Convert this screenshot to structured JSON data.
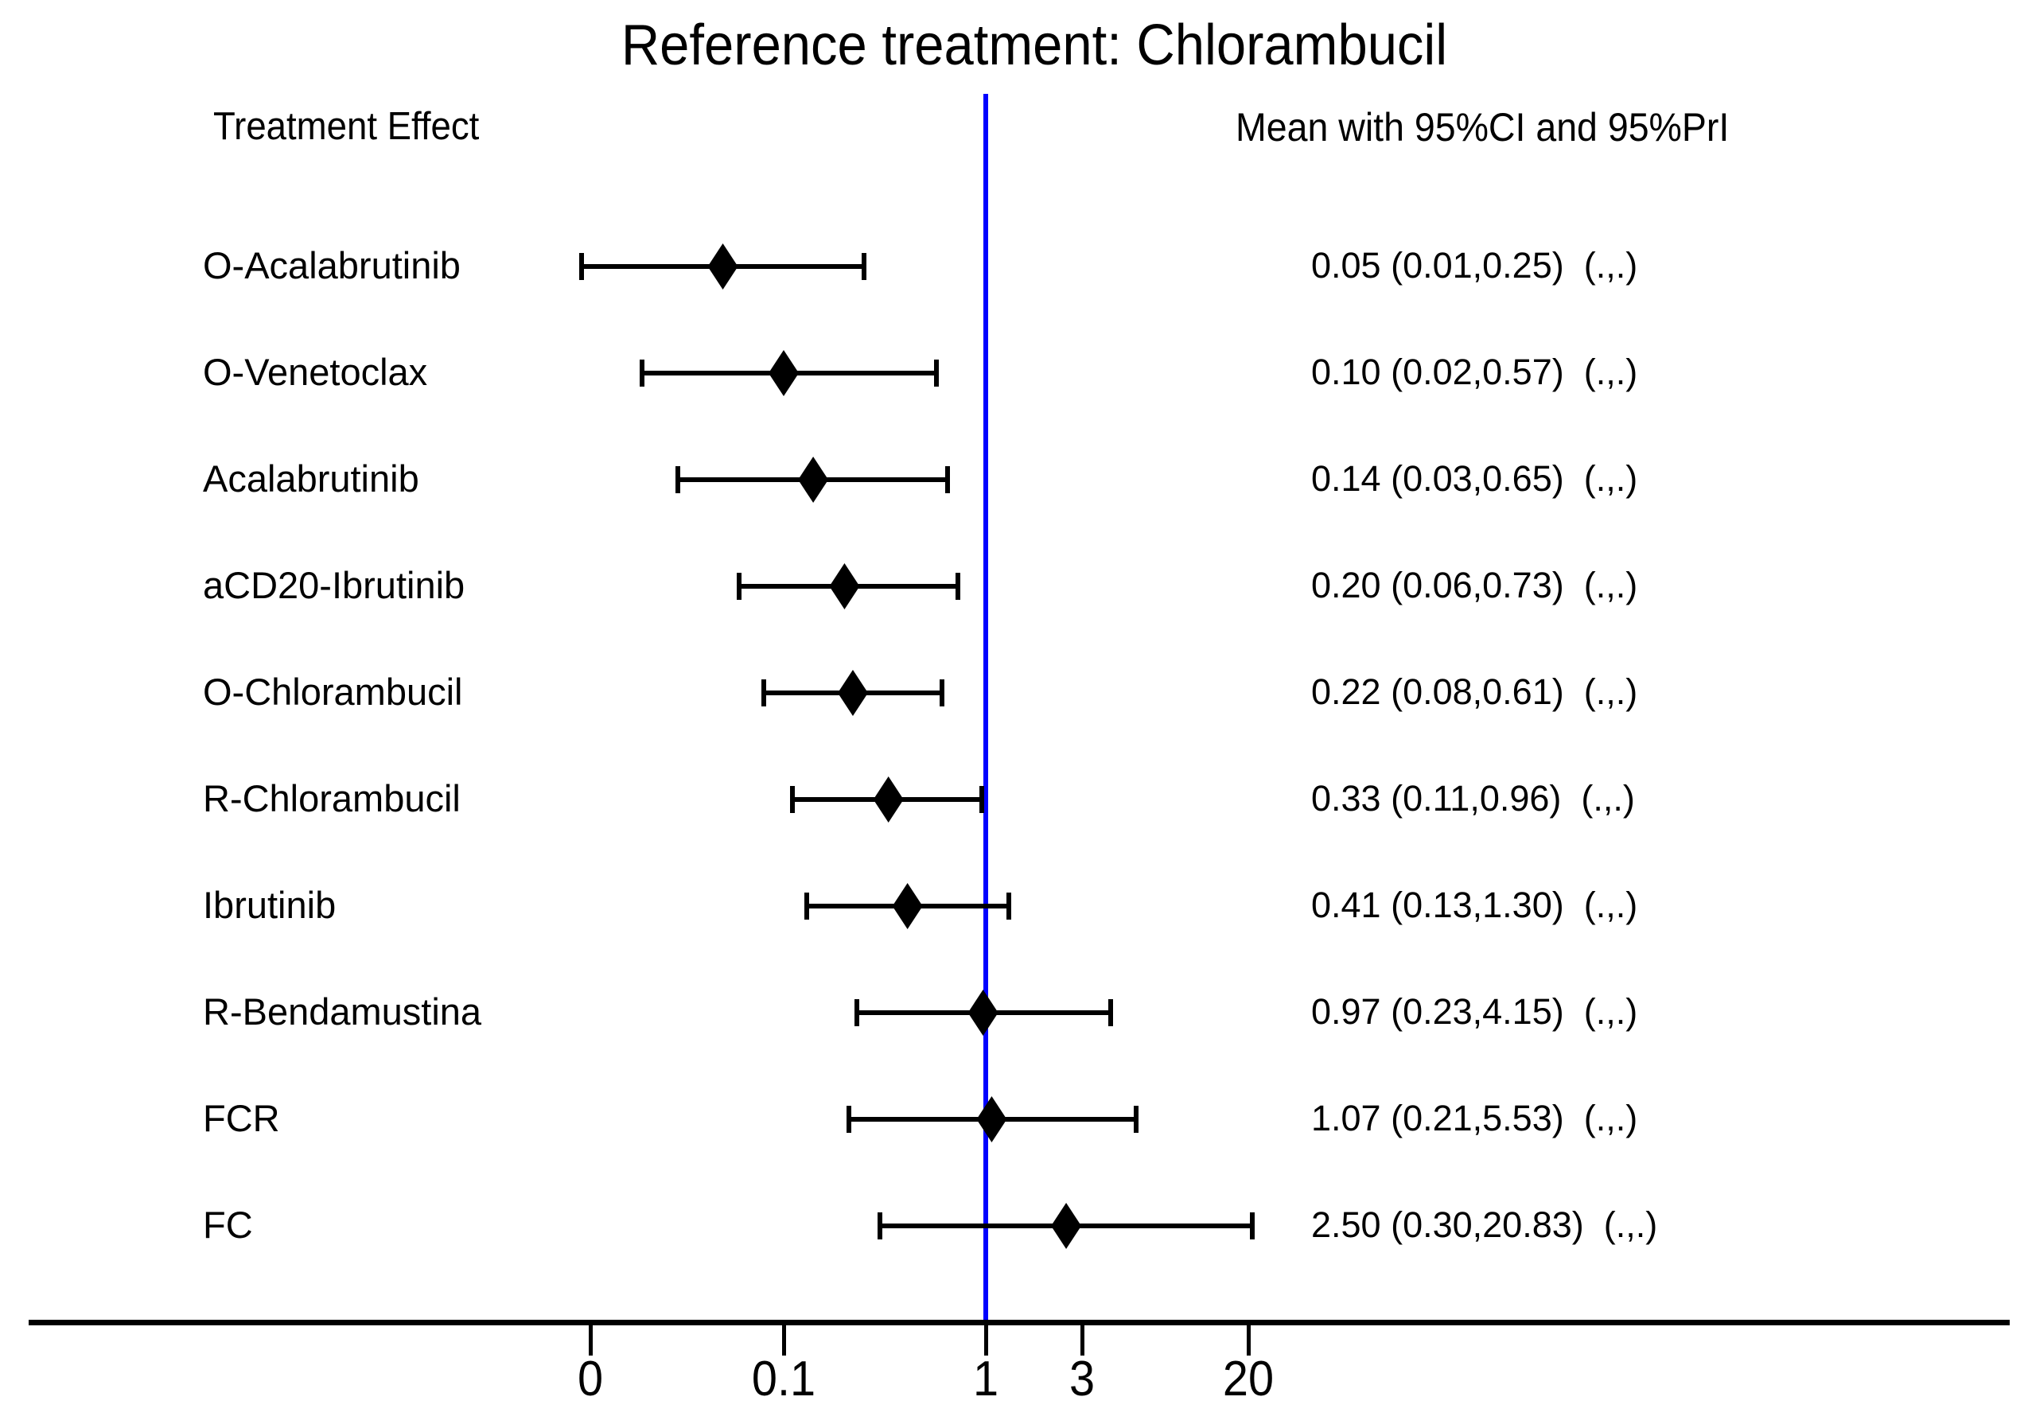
{
  "title": "Reference treatment: Chlorambucil",
  "headers": {
    "left": "Treatment Effect",
    "right": "Mean with 95%CI and 95%PrI"
  },
  "colors": {
    "marker_black": "#000000",
    "reference_line_blue": "#0000FF",
    "background": "#FFFFFF"
  },
  "chart_data": {
    "type": "forest",
    "title": "Reference treatment: Chlorambucil",
    "x_scale": "log",
    "grid": "off",
    "reference_line": {
      "value": 1
    },
    "x_axis": {
      "ticks": [
        {
          "label": "0",
          "value": 0.011
        },
        {
          "label": "0.1",
          "value": 0.1
        },
        {
          "label": "1",
          "value": 1
        },
        {
          "label": "3",
          "value": 3
        },
        {
          "label": "20",
          "value": 20
        }
      ]
    },
    "rows": [
      {
        "treatment": "O-Acalabrutinib",
        "mean": 0.05,
        "ci_low": 0.01,
        "ci_high": 0.25,
        "display": "0.05 (0.01,0.25)  (.,.)"
      },
      {
        "treatment": "O-Venetoclax",
        "mean": 0.1,
        "ci_low": 0.02,
        "ci_high": 0.57,
        "display": "0.10 (0.02,0.57)  (.,.)"
      },
      {
        "treatment": "Acalabrutinib",
        "mean": 0.14,
        "ci_low": 0.03,
        "ci_high": 0.65,
        "display": "0.14 (0.03,0.65)  (.,.)"
      },
      {
        "treatment": "aCD20-Ibrutinib",
        "mean": 0.2,
        "ci_low": 0.06,
        "ci_high": 0.73,
        "display": "0.20 (0.06,0.73)  (.,.)"
      },
      {
        "treatment": "O-Chlorambucil",
        "mean": 0.22,
        "ci_low": 0.08,
        "ci_high": 0.61,
        "display": "0.22 (0.08,0.61)  (.,.)"
      },
      {
        "treatment": "R-Chlorambucil",
        "mean": 0.33,
        "ci_low": 0.11,
        "ci_high": 0.96,
        "display": "0.33 (0.11,0.96)  (.,.)"
      },
      {
        "treatment": "Ibrutinib",
        "mean": 0.41,
        "ci_low": 0.13,
        "ci_high": 1.3,
        "display": "0.41 (0.13,1.30)  (.,.)"
      },
      {
        "treatment": "R-Bendamustina",
        "mean": 0.97,
        "ci_low": 0.23,
        "ci_high": 4.15,
        "display": "0.97 (0.23,4.15)  (.,.)"
      },
      {
        "treatment": "FCR",
        "mean": 1.07,
        "ci_low": 0.21,
        "ci_high": 5.53,
        "display": "1.07 (0.21,5.53)  (.,.)"
      },
      {
        "treatment": "FC",
        "mean": 2.5,
        "ci_low": 0.3,
        "ci_high": 20.83,
        "display": "2.50 (0.30,20.83)  (.,.)"
      }
    ]
  }
}
